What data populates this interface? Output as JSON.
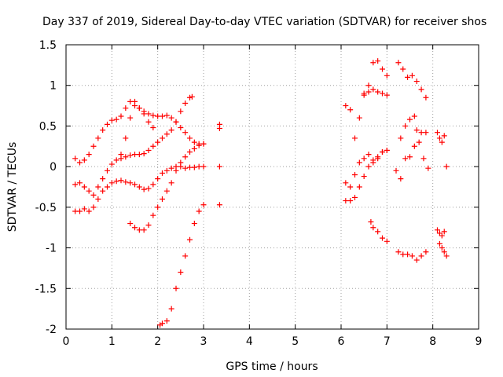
{
  "chart_data": {
    "type": "scatter",
    "title": "Day 337 of 2019, Sidereal Day-to-day VTEC variation (SDTVAR) for receiver shos",
    "xlabel": "GPS time / hours",
    "ylabel": "SDTVAR / TECUs",
    "xlim": [
      0,
      9
    ],
    "ylim": [
      -2,
      1.5
    ],
    "xticks": [
      "0",
      "1",
      "2",
      "3",
      "4",
      "5",
      "6",
      "7",
      "8",
      "9"
    ],
    "yticks": [
      "-2",
      "-1.5",
      "-1",
      "-0.5",
      "0",
      "0.5",
      "1",
      "1.5"
    ],
    "grid": true,
    "marker": "+",
    "color": "#ff0000",
    "series": [
      {
        "points": [
          [
            0.2,
            0.1
          ],
          [
            0.3,
            0.05
          ],
          [
            0.4,
            0.08
          ],
          [
            0.5,
            0.15
          ],
          [
            0.6,
            0.25
          ],
          [
            0.7,
            0.35
          ],
          [
            0.8,
            0.45
          ],
          [
            0.9,
            0.52
          ],
          [
            1.0,
            0.57
          ],
          [
            1.1,
            0.58
          ],
          [
            1.2,
            0.62
          ],
          [
            1.3,
            0.72
          ],
          [
            1.4,
            0.8
          ],
          [
            1.5,
            0.8
          ],
          [
            1.6,
            0.72
          ],
          [
            1.7,
            0.65
          ],
          [
            1.8,
            0.55
          ],
          [
            1.9,
            0.48
          ]
        ]
      },
      {
        "points": [
          [
            1.2,
            0.15
          ],
          [
            1.3,
            0.35
          ],
          [
            1.4,
            0.6
          ],
          [
            1.5,
            0.75
          ],
          [
            1.6,
            0.72
          ],
          [
            1.7,
            0.68
          ],
          [
            1.8,
            0.65
          ],
          [
            1.9,
            0.63
          ],
          [
            2.0,
            0.62
          ],
          [
            2.1,
            0.62
          ],
          [
            2.2,
            0.63
          ],
          [
            2.3,
            0.6
          ],
          [
            2.4,
            0.55
          ],
          [
            2.5,
            0.48
          ],
          [
            2.6,
            0.42
          ],
          [
            2.7,
            0.35
          ],
          [
            2.8,
            0.3
          ],
          [
            2.9,
            0.28
          ],
          [
            3.0,
            0.28
          ]
        ]
      },
      {
        "points": [
          [
            0.2,
            -0.22
          ],
          [
            0.3,
            -0.2
          ],
          [
            0.4,
            -0.25
          ],
          [
            0.5,
            -0.3
          ],
          [
            0.6,
            -0.35
          ],
          [
            0.7,
            -0.25
          ],
          [
            0.8,
            -0.15
          ],
          [
            0.9,
            -0.05
          ],
          [
            1.0,
            0.03
          ],
          [
            1.1,
            0.08
          ],
          [
            1.2,
            0.1
          ],
          [
            1.3,
            0.12
          ],
          [
            1.4,
            0.14
          ],
          [
            1.5,
            0.15
          ],
          [
            1.6,
            0.15
          ],
          [
            1.7,
            0.16
          ],
          [
            1.8,
            0.2
          ],
          [
            1.9,
            0.25
          ],
          [
            2.0,
            0.3
          ],
          [
            2.1,
            0.35
          ],
          [
            2.2,
            0.4
          ],
          [
            2.3,
            0.45
          ],
          [
            2.4,
            0.55
          ],
          [
            2.5,
            0.68
          ],
          [
            2.6,
            0.78
          ],
          [
            2.7,
            0.85
          ],
          [
            2.75,
            0.86
          ]
        ]
      },
      {
        "points": [
          [
            0.2,
            -0.55
          ],
          [
            0.3,
            -0.55
          ],
          [
            0.4,
            -0.52
          ],
          [
            0.5,
            -0.55
          ],
          [
            0.6,
            -0.5
          ],
          [
            0.7,
            -0.4
          ],
          [
            0.8,
            -0.3
          ],
          [
            0.9,
            -0.25
          ],
          [
            1.0,
            -0.2
          ],
          [
            1.1,
            -0.18
          ],
          [
            1.2,
            -0.17
          ],
          [
            1.3,
            -0.19
          ],
          [
            1.4,
            -0.2
          ],
          [
            1.5,
            -0.22
          ],
          [
            1.6,
            -0.25
          ],
          [
            1.7,
            -0.28
          ],
          [
            1.8,
            -0.27
          ],
          [
            1.9,
            -0.22
          ],
          [
            2.0,
            -0.15
          ],
          [
            2.1,
            -0.08
          ],
          [
            2.2,
            -0.05
          ],
          [
            2.3,
            -0.02
          ],
          [
            2.4,
            0.0
          ],
          [
            2.5,
            0.0
          ],
          [
            2.6,
            -0.02
          ],
          [
            2.7,
            -0.01
          ],
          [
            2.8,
            -0.01
          ],
          [
            2.9,
            0.0
          ],
          [
            3.0,
            0.0
          ]
        ]
      },
      {
        "points": [
          [
            1.4,
            -0.7
          ],
          [
            1.5,
            -0.75
          ],
          [
            1.6,
            -0.78
          ],
          [
            1.7,
            -0.78
          ],
          [
            1.8,
            -0.72
          ],
          [
            1.9,
            -0.6
          ],
          [
            2.0,
            -0.5
          ],
          [
            2.1,
            -0.4
          ],
          [
            2.2,
            -0.3
          ],
          [
            2.3,
            -0.2
          ],
          [
            2.4,
            -0.05
          ],
          [
            2.5,
            0.05
          ],
          [
            2.6,
            0.12
          ],
          [
            2.7,
            0.18
          ],
          [
            2.8,
            0.22
          ],
          [
            2.9,
            0.26
          ],
          [
            3.0,
            0.28
          ]
        ]
      },
      {
        "points": [
          [
            2.05,
            -1.95
          ],
          [
            2.1,
            -1.93
          ],
          [
            2.2,
            -1.9
          ],
          [
            2.3,
            -1.75
          ],
          [
            2.4,
            -1.5
          ],
          [
            2.5,
            -1.3
          ],
          [
            2.6,
            -1.1
          ],
          [
            2.7,
            -0.9
          ],
          [
            2.8,
            -0.7
          ],
          [
            2.9,
            -0.55
          ],
          [
            3.0,
            -0.47
          ]
        ]
      },
      {
        "points": [
          [
            3.35,
            0.52
          ],
          [
            3.35,
            0.47
          ],
          [
            3.35,
            0.0
          ],
          [
            3.35,
            -0.47
          ]
        ]
      },
      {
        "points": [
          [
            6.1,
            0.75
          ],
          [
            6.2,
            0.7
          ],
          [
            6.3,
            0.35
          ],
          [
            6.4,
            0.6
          ],
          [
            6.5,
            0.88
          ],
          [
            6.6,
            1.0
          ],
          [
            6.7,
            1.28
          ],
          [
            6.8,
            1.3
          ],
          [
            6.9,
            1.2
          ],
          [
            7.0,
            1.12
          ]
        ]
      },
      {
        "points": [
          [
            6.1,
            -0.2
          ],
          [
            6.2,
            -0.25
          ],
          [
            6.3,
            -0.1
          ],
          [
            6.4,
            0.05
          ],
          [
            6.5,
            0.1
          ],
          [
            6.6,
            0.15
          ],
          [
            6.7,
            0.08
          ],
          [
            6.8,
            0.12
          ],
          [
            6.9,
            0.18
          ],
          [
            7.0,
            0.2
          ]
        ]
      },
      {
        "points": [
          [
            6.1,
            -0.42
          ],
          [
            6.2,
            -0.42
          ],
          [
            6.3,
            -0.38
          ],
          [
            6.4,
            -0.25
          ],
          [
            6.5,
            -0.12
          ],
          [
            6.6,
            0.0
          ],
          [
            6.7,
            0.05
          ],
          [
            6.8,
            0.1
          ],
          [
            6.9,
            0.18
          ],
          [
            7.0,
            0.2
          ]
        ]
      },
      {
        "points": [
          [
            6.5,
            0.9
          ],
          [
            6.6,
            0.92
          ],
          [
            6.7,
            0.95
          ],
          [
            6.8,
            0.92
          ],
          [
            6.9,
            0.9
          ],
          [
            7.0,
            0.88
          ]
        ]
      },
      {
        "points": [
          [
            6.65,
            -0.68
          ],
          [
            6.7,
            -0.75
          ],
          [
            6.8,
            -0.8
          ],
          [
            6.9,
            -0.88
          ],
          [
            7.0,
            -0.92
          ]
        ]
      },
      {
        "points": [
          [
            7.25,
            1.28
          ],
          [
            7.35,
            1.2
          ],
          [
            7.45,
            1.1
          ],
          [
            7.55,
            1.12
          ],
          [
            7.65,
            1.05
          ],
          [
            7.75,
            0.95
          ],
          [
            7.85,
            0.85
          ]
        ]
      },
      {
        "points": [
          [
            7.2,
            -0.05
          ],
          [
            7.3,
            -0.15
          ],
          [
            7.4,
            0.1
          ],
          [
            7.5,
            0.12
          ],
          [
            7.6,
            0.25
          ],
          [
            7.7,
            0.3
          ],
          [
            7.8,
            0.1
          ],
          [
            7.9,
            -0.02
          ]
        ]
      },
      {
        "points": [
          [
            7.3,
            0.35
          ],
          [
            7.4,
            0.5
          ],
          [
            7.5,
            0.58
          ],
          [
            7.6,
            0.62
          ],
          [
            7.65,
            0.45
          ],
          [
            7.75,
            0.42
          ],
          [
            7.85,
            0.42
          ]
        ]
      },
      {
        "points": [
          [
            7.25,
            -1.05
          ],
          [
            7.35,
            -1.08
          ],
          [
            7.45,
            -1.08
          ],
          [
            7.55,
            -1.1
          ],
          [
            7.65,
            -1.15
          ],
          [
            7.75,
            -1.1
          ],
          [
            7.85,
            -1.05
          ]
        ]
      },
      {
        "points": [
          [
            8.1,
            0.42
          ],
          [
            8.15,
            0.35
          ],
          [
            8.2,
            0.3
          ],
          [
            8.25,
            0.38
          ],
          [
            8.3,
            0.0
          ]
        ]
      },
      {
        "points": [
          [
            8.1,
            -0.78
          ],
          [
            8.15,
            -0.82
          ],
          [
            8.2,
            -0.85
          ],
          [
            8.25,
            -0.8
          ]
        ]
      },
      {
        "points": [
          [
            8.15,
            -0.95
          ],
          [
            8.2,
            -1.0
          ],
          [
            8.25,
            -1.05
          ],
          [
            8.3,
            -1.1
          ]
        ]
      }
    ]
  }
}
